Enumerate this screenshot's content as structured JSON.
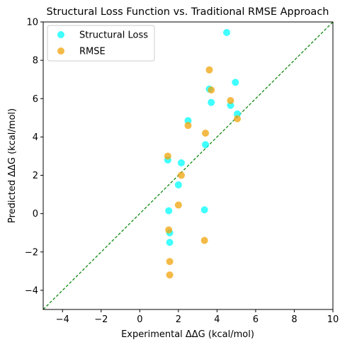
{
  "chart_data": {
    "type": "scatter",
    "title": "Structural Loss Function vs. Traditional RMSE Approach",
    "xlabel": "Experimental ΔΔG (kcal/mol)",
    "ylabel": "Predicted ΔΔG (kcal/mol)",
    "xlim": [
      -5,
      10
    ],
    "ylim": [
      -5,
      10
    ],
    "xticks": [
      -4,
      -2,
      0,
      2,
      4,
      6,
      8,
      10
    ],
    "yticks": [
      -4,
      -2,
      0,
      2,
      4,
      6,
      8,
      10
    ],
    "grid": false,
    "legend_position": "top-left",
    "reference_line": {
      "x": [
        -5,
        10
      ],
      "y": [
        -5,
        10
      ],
      "style": "dashed",
      "color": "#008000"
    },
    "series": [
      {
        "name": "Structural Loss",
        "color": "#00ffff",
        "points": [
          {
            "x": 4.5,
            "y": 9.45
          },
          {
            "x": 4.95,
            "y": 6.85
          },
          {
            "x": 3.6,
            "y": 6.5
          },
          {
            "x": 3.7,
            "y": 5.8
          },
          {
            "x": 4.7,
            "y": 5.65
          },
          {
            "x": 5.05,
            "y": 5.2
          },
          {
            "x": 2.5,
            "y": 4.85
          },
          {
            "x": 3.4,
            "y": 3.6
          },
          {
            "x": 1.45,
            "y": 2.8
          },
          {
            "x": 2.15,
            "y": 2.65
          },
          {
            "x": 2.0,
            "y": 1.5
          },
          {
            "x": 1.5,
            "y": 0.15
          },
          {
            "x": 3.35,
            "y": 0.2
          },
          {
            "x": 1.55,
            "y": -1.0
          },
          {
            "x": 1.55,
            "y": -1.5
          }
        ]
      },
      {
        "name": "RMSE",
        "color": "#f0a30a",
        "points": [
          {
            "x": 3.6,
            "y": 7.5
          },
          {
            "x": 3.7,
            "y": 6.45
          },
          {
            "x": 4.7,
            "y": 5.9
          },
          {
            "x": 5.05,
            "y": 4.95
          },
          {
            "x": 2.5,
            "y": 4.6
          },
          {
            "x": 3.4,
            "y": 4.2
          },
          {
            "x": 1.45,
            "y": 3.0
          },
          {
            "x": 2.15,
            "y": 2.0
          },
          {
            "x": 2.0,
            "y": 0.45
          },
          {
            "x": 1.5,
            "y": -0.85
          },
          {
            "x": 3.35,
            "y": -1.4
          },
          {
            "x": 1.55,
            "y": -2.5
          },
          {
            "x": 1.55,
            "y": -3.2
          }
        ]
      }
    ]
  }
}
